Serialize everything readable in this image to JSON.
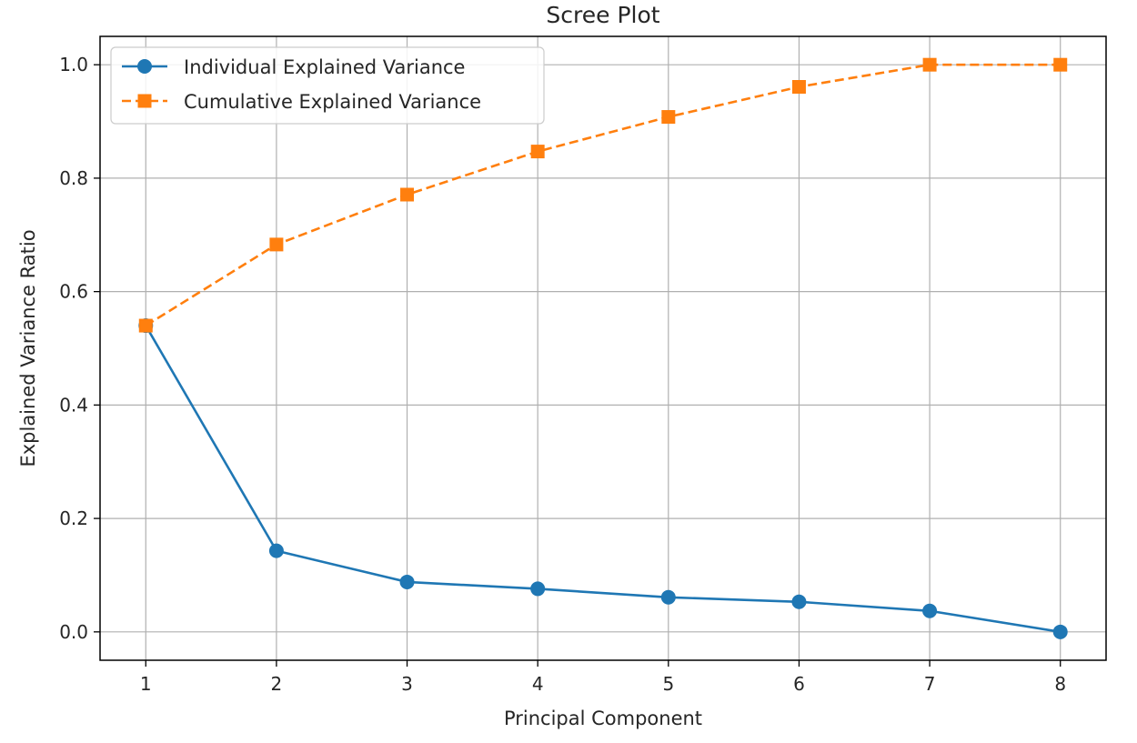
{
  "chart_data": {
    "type": "line",
    "title": "Scree Plot",
    "xlabel": "Principal Component",
    "ylabel": "Explained Variance Ratio",
    "x": [
      1,
      2,
      3,
      4,
      5,
      6,
      7,
      8
    ],
    "xticks": [
      "1",
      "2",
      "3",
      "4",
      "5",
      "6",
      "7",
      "8"
    ],
    "yticks": [
      "0.0",
      "0.2",
      "0.4",
      "0.6",
      "0.8",
      "1.0"
    ],
    "xlim": [
      0.65,
      8.35
    ],
    "ylim": [
      -0.05,
      1.05
    ],
    "grid": true,
    "legend_position": "top-left",
    "series": [
      {
        "name": "Individual Explained Variance",
        "values": [
          0.54,
          0.143,
          0.088,
          0.076,
          0.061,
          0.053,
          0.037,
          0.0
        ],
        "color": "#1f77b4",
        "marker": "circle",
        "linestyle": "solid"
      },
      {
        "name": "Cumulative Explained Variance",
        "values": [
          0.54,
          0.683,
          0.771,
          0.847,
          0.908,
          0.961,
          1.0,
          1.0
        ],
        "color": "#ff7f0e",
        "marker": "square",
        "linestyle": "dashed"
      }
    ]
  }
}
